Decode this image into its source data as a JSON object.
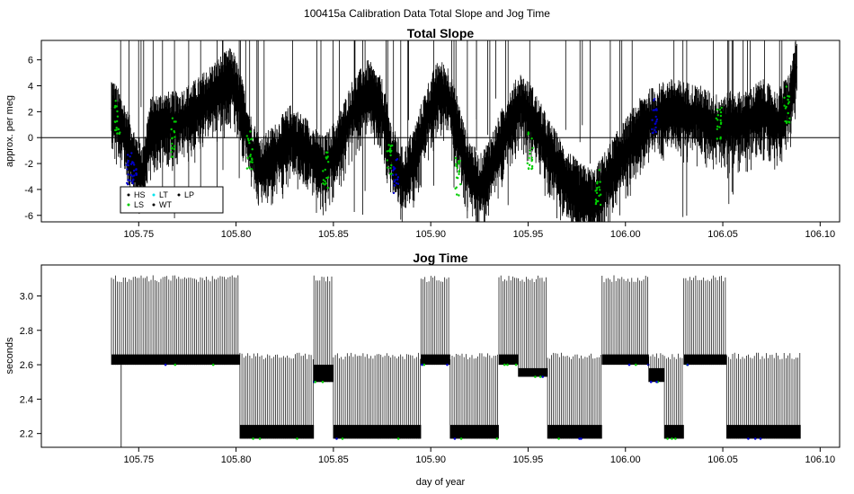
{
  "figure": {
    "title": "100415a   Calibration Data Total Slope and Jog Time",
    "xlabel": "day of year",
    "x_ticks": [
      105.75,
      105.8,
      105.85,
      105.9,
      105.95,
      106.0,
      106.05,
      106.1
    ],
    "x_tick_labels": [
      "105.75",
      "105.80",
      "105.85",
      "105.90",
      "105.95",
      "106.00",
      "106.05",
      "106.10"
    ],
    "xlim": [
      105.7,
      106.11
    ]
  },
  "legend": {
    "entries": [
      {
        "label": "HS",
        "color": "#000000"
      },
      {
        "label": "LS",
        "color": "#00cc00"
      },
      {
        "label": "LT",
        "color": "#00e5ee"
      },
      {
        "label": "WT",
        "color": "#000000"
      },
      {
        "label": "LP",
        "color": "#000000"
      }
    ]
  },
  "chart_data": [
    {
      "type": "line",
      "title": "Total Slope",
      "xlabel": "",
      "ylabel": "approx. per meg",
      "ylim": [
        -6.5,
        7.5
      ],
      "y_ticks": [
        -6,
        -4,
        -2,
        0,
        2,
        4,
        6
      ],
      "y_tick_labels": [
        "-6",
        "-4",
        "-2",
        "0",
        "2",
        "4",
        "6"
      ],
      "reference_line_y": 0,
      "x": [
        105.736,
        105.742,
        105.748,
        105.752,
        105.756,
        105.762,
        105.77,
        105.78,
        105.79,
        105.798,
        105.803,
        105.808,
        105.813,
        105.82,
        105.828,
        105.836,
        105.845,
        105.852,
        105.86,
        105.868,
        105.875,
        105.88,
        105.886,
        105.892,
        105.898,
        105.904,
        105.909,
        105.914,
        105.918,
        105.925,
        105.932,
        105.94,
        105.946,
        105.952,
        105.96,
        105.968,
        105.976,
        105.984,
        105.99,
        105.996,
        106.003,
        106.01,
        106.016,
        106.022,
        106.03,
        106.038,
        106.046,
        106.054,
        106.062,
        106.07,
        106.078,
        106.084,
        106.088
      ],
      "series": [
        {
          "values": [
            2.3,
            0.5,
            -2.0,
            -3.0,
            0.5,
            1.0,
            1.0,
            2.0,
            3.5,
            4.5,
            2.0,
            -1.0,
            -2.5,
            -1.5,
            0.0,
            -1.0,
            -2.5,
            -1.0,
            2.0,
            3.5,
            2.0,
            -1.5,
            -3.5,
            -1.5,
            1.5,
            3.5,
            3.0,
            0.5,
            -2.0,
            -4.0,
            -2.0,
            1.0,
            2.5,
            1.5,
            -1.0,
            -3.0,
            -4.5,
            -5.0,
            -3.5,
            -2.0,
            -0.5,
            1.0,
            1.5,
            2.0,
            1.8,
            1.5,
            0.8,
            1.0,
            1.0,
            2.0,
            1.0,
            2.5,
            5.5
          ]
        }
      ],
      "highlights": [
        {
          "x": 105.745,
          "y": -2.5,
          "color": "#0000cc"
        },
        {
          "x": 105.748,
          "y": -3.0,
          "color": "#0000cc"
        },
        {
          "x": 105.739,
          "y": 1.5,
          "color": "#00cc00"
        },
        {
          "x": 105.768,
          "y": 0.0,
          "color": "#00cc00"
        },
        {
          "x": 105.807,
          "y": -1.0,
          "color": "#00cc00"
        },
        {
          "x": 105.846,
          "y": -2.5,
          "color": "#00cc00"
        },
        {
          "x": 105.879,
          "y": -1.5,
          "color": "#00cc00"
        },
        {
          "x": 105.882,
          "y": -3.0,
          "color": "#0000cc"
        },
        {
          "x": 105.914,
          "y": -3.0,
          "color": "#00cc00"
        },
        {
          "x": 105.951,
          "y": -1.0,
          "color": "#00cc00"
        },
        {
          "x": 105.986,
          "y": -4.0,
          "color": "#00cc00"
        },
        {
          "x": 106.015,
          "y": 1.5,
          "color": "#0000cc"
        },
        {
          "x": 106.048,
          "y": 1.0,
          "color": "#00cc00"
        },
        {
          "x": 106.083,
          "y": 2.5,
          "color": "#00cc00"
        }
      ]
    },
    {
      "type": "line",
      "title": "Jog Time",
      "xlabel": "day of year",
      "ylabel": "seconds",
      "ylim": [
        2.12,
        3.18
      ],
      "y_ticks": [
        2.2,
        2.4,
        2.6,
        2.8,
        3.0
      ],
      "y_tick_labels": [
        "2.2",
        "2.4",
        "2.6",
        "2.8",
        "3.0"
      ],
      "segments": [
        {
          "x_start": 105.736,
          "x_end": 105.802,
          "low": 2.6,
          "high": 2.66,
          "spike_max": 3.12
        },
        {
          "x_start": 105.802,
          "x_end": 105.84,
          "low": 2.17,
          "high": 2.25,
          "spike_max": 2.67
        },
        {
          "x_start": 105.84,
          "x_end": 105.85,
          "low": 2.5,
          "high": 2.6,
          "spike_max": 3.12
        },
        {
          "x_start": 105.85,
          "x_end": 105.895,
          "low": 2.17,
          "high": 2.25,
          "spike_max": 2.67
        },
        {
          "x_start": 105.895,
          "x_end": 105.91,
          "low": 2.6,
          "high": 2.66,
          "spike_max": 3.12
        },
        {
          "x_start": 105.91,
          "x_end": 105.935,
          "low": 2.17,
          "high": 2.25,
          "spike_max": 2.67
        },
        {
          "x_start": 105.935,
          "x_end": 105.945,
          "low": 2.6,
          "high": 2.66,
          "spike_max": 3.12
        },
        {
          "x_start": 105.945,
          "x_end": 105.96,
          "low": 2.53,
          "high": 2.58,
          "spike_max": 3.12
        },
        {
          "x_start": 105.96,
          "x_end": 105.988,
          "low": 2.17,
          "high": 2.25,
          "spike_max": 2.67
        },
        {
          "x_start": 105.988,
          "x_end": 106.012,
          "low": 2.6,
          "high": 2.66,
          "spike_max": 3.12
        },
        {
          "x_start": 106.012,
          "x_end": 106.02,
          "low": 2.5,
          "high": 2.58,
          "spike_max": 2.67
        },
        {
          "x_start": 106.02,
          "x_end": 106.03,
          "low": 2.17,
          "high": 2.25,
          "spike_max": 2.67
        },
        {
          "x_start": 106.03,
          "x_end": 106.052,
          "low": 2.6,
          "high": 2.66,
          "spike_max": 3.12
        },
        {
          "x_start": 106.052,
          "x_end": 106.09,
          "low": 2.17,
          "high": 2.25,
          "spike_max": 2.67
        }
      ]
    }
  ]
}
